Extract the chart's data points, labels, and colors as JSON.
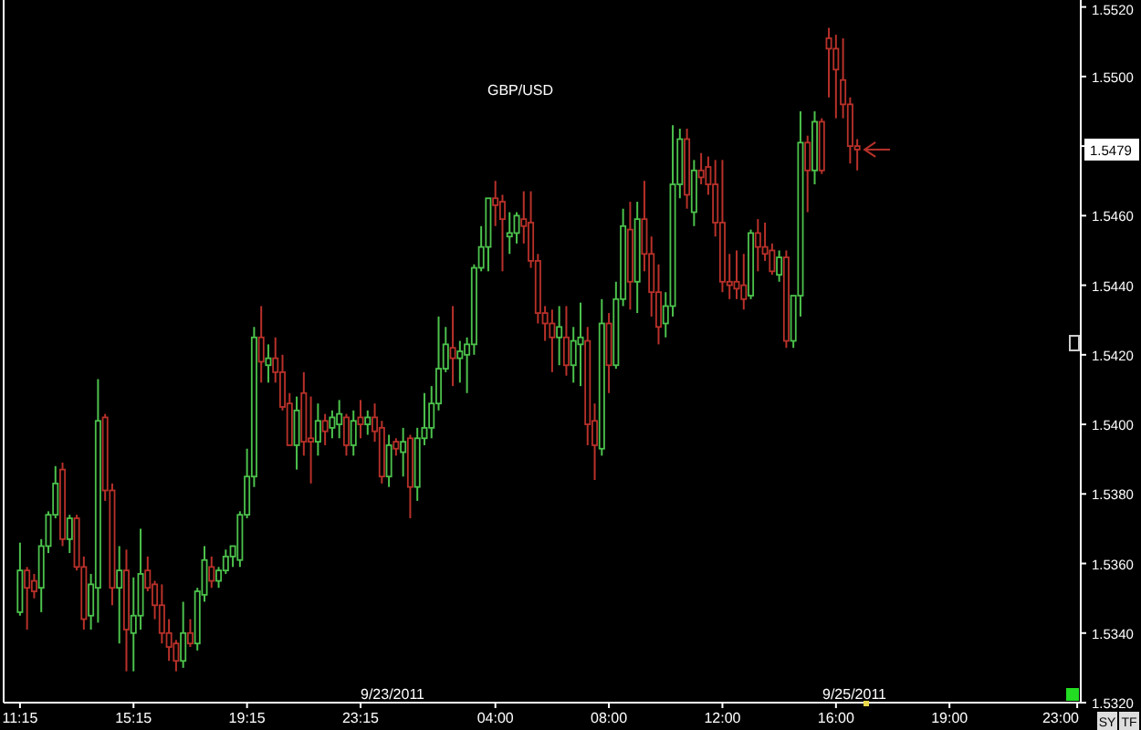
{
  "chart_data": {
    "type": "candlestick",
    "title": "GBP/USD",
    "categories": [
      "11:15",
      null,
      null,
      null,
      null,
      null,
      null,
      null,
      null,
      null,
      null,
      null,
      null,
      null,
      null,
      null,
      "15:15",
      null,
      null,
      null,
      null,
      null,
      null,
      null,
      null,
      null,
      null,
      null,
      null,
      null,
      null,
      null,
      "19:15",
      null,
      null,
      null,
      null,
      null,
      null,
      null,
      null,
      null,
      null,
      null,
      null,
      null,
      null,
      null,
      "23:15",
      null,
      null,
      null,
      null,
      null,
      null,
      null,
      null,
      null,
      null,
      null,
      null,
      null,
      null,
      null,
      null,
      null,
      null,
      "04:00",
      null,
      null,
      null,
      null,
      null,
      null,
      null,
      null,
      null,
      null,
      null,
      null,
      null,
      null,
      null,
      "08:00",
      null,
      null,
      null,
      null,
      null,
      null,
      null,
      null,
      null,
      null,
      null,
      null,
      null,
      null,
      null,
      "12:00",
      null,
      null,
      null,
      null,
      null,
      null,
      null,
      null,
      null,
      null,
      null,
      null,
      null,
      null,
      null,
      "16:00",
      null,
      null,
      null,
      null,
      null,
      null,
      null,
      null,
      null,
      null,
      null,
      null,
      null,
      null,
      null,
      "19:00",
      null,
      null,
      null,
      null,
      null,
      null,
      null,
      null,
      null,
      null,
      null,
      null,
      null,
      null,
      null,
      null,
      null,
      "23:00"
    ],
    "ohlc": [
      [
        1.5346,
        1.5366,
        1.5345,
        1.5358
      ],
      [
        1.5358,
        1.5359,
        1.5341,
        1.5353
      ],
      [
        1.5355,
        1.5357,
        1.535,
        1.5352
      ],
      [
        1.5353,
        1.5367,
        1.5346,
        1.5365
      ],
      [
        1.5365,
        1.5375,
        1.5363,
        1.5374
      ],
      [
        1.5374,
        1.5388,
        1.5373,
        1.5383
      ],
      [
        1.5387,
        1.5389,
        1.5365,
        1.5367
      ],
      [
        1.5367,
        1.5374,
        1.5363,
        1.5373
      ],
      [
        1.5373,
        1.5374,
        1.5358,
        1.5359
      ],
      [
        1.5359,
        1.5362,
        1.5341,
        1.5344
      ],
      [
        1.5345,
        1.5357,
        1.5341,
        1.5354
      ],
      [
        1.5353,
        1.5413,
        1.5343,
        1.5401
      ],
      [
        1.5402,
        1.5403,
        1.5378,
        1.5381
      ],
      [
        1.5381,
        1.5383,
        1.5348,
        1.5353
      ],
      [
        1.5353,
        1.5365,
        1.5337,
        1.5358
      ],
      [
        1.5358,
        1.5364,
        1.5329,
        1.5341
      ],
      [
        1.534,
        1.5356,
        1.5329,
        1.5345
      ],
      [
        1.5345,
        1.537,
        1.5341,
        1.5357
      ],
      [
        1.5358,
        1.5362,
        1.5352,
        1.5353
      ],
      [
        1.5354,
        1.5355,
        1.5344,
        1.5348
      ],
      [
        1.5348,
        1.5354,
        1.5337,
        1.534
      ],
      [
        1.534,
        1.5344,
        1.5332,
        1.5336
      ],
      [
        1.5337,
        1.5338,
        1.5329,
        1.5332
      ],
      [
        1.5332,
        1.5349,
        1.533,
        1.534
      ],
      [
        1.534,
        1.5344,
        1.5336,
        1.5337
      ],
      [
        1.5337,
        1.5353,
        1.5335,
        1.5352
      ],
      [
        1.5351,
        1.5365,
        1.5349,
        1.5361
      ],
      [
        1.5359,
        1.5362,
        1.5353,
        1.5355
      ],
      [
        1.5355,
        1.5359,
        1.5353,
        1.5358
      ],
      [
        1.5358,
        1.5364,
        1.5357,
        1.5362
      ],
      [
        1.5362,
        1.5365,
        1.5359,
        1.5365
      ],
      [
        1.5361,
        1.5375,
        1.5359,
        1.5374
      ],
      [
        1.5374,
        1.5393,
        1.5373,
        1.5385
      ],
      [
        1.5385,
        1.5428,
        1.5382,
        1.5425
      ],
      [
        1.5425,
        1.5434,
        1.5412,
        1.5418
      ],
      [
        1.5417,
        1.5423,
        1.5412,
        1.5419
      ],
      [
        1.5419,
        1.5425,
        1.5412,
        1.5415
      ],
      [
        1.5415,
        1.542,
        1.5404,
        1.5405
      ],
      [
        1.5406,
        1.5409,
        1.5394,
        1.5394
      ],
      [
        1.5394,
        1.5408,
        1.5387,
        1.5404
      ],
      [
        1.5409,
        1.5415,
        1.5391,
        1.5395
      ],
      [
        1.5396,
        1.5408,
        1.5383,
        1.5395
      ],
      [
        1.5395,
        1.5406,
        1.5391,
        1.5401
      ],
      [
        1.5401,
        1.5403,
        1.5394,
        1.5398
      ],
      [
        1.5399,
        1.5404,
        1.5396,
        1.5402
      ],
      [
        1.54,
        1.5407,
        1.5396,
        1.5403
      ],
      [
        1.5402,
        1.5403,
        1.5391,
        1.5394
      ],
      [
        1.5394,
        1.5404,
        1.5391,
        1.5401
      ],
      [
        1.5402,
        1.5407,
        1.5396,
        1.54
      ],
      [
        1.54,
        1.5404,
        1.5397,
        1.5402
      ],
      [
        1.5402,
        1.5406,
        1.5395,
        1.5398
      ],
      [
        1.5399,
        1.5401,
        1.5383,
        1.5385
      ],
      [
        1.5385,
        1.5397,
        1.5382,
        1.5394
      ],
      [
        1.5395,
        1.5396,
        1.5391,
        1.5393
      ],
      [
        1.5392,
        1.5399,
        1.5385,
        1.5395
      ],
      [
        1.5396,
        1.5397,
        1.5373,
        1.5382
      ],
      [
        1.5382,
        1.5399,
        1.5378,
        1.5396
      ],
      [
        1.5396,
        1.5409,
        1.5394,
        1.5399
      ],
      [
        1.5399,
        1.5411,
        1.5396,
        1.5406
      ],
      [
        1.5406,
        1.5431,
        1.5404,
        1.5416
      ],
      [
        1.5416,
        1.5428,
        1.5415,
        1.5423
      ],
      [
        1.5422,
        1.5434,
        1.5411,
        1.5419
      ],
      [
        1.5419,
        1.5424,
        1.5412,
        1.5421
      ],
      [
        1.542,
        1.5425,
        1.5409,
        1.5423
      ],
      [
        1.5423,
        1.5446,
        1.542,
        1.5445
      ],
      [
        1.5445,
        1.5457,
        1.5444,
        1.5451
      ],
      [
        1.5451,
        1.5465,
        1.5444,
        1.5465
      ],
      [
        1.5465,
        1.547,
        1.5457,
        1.5463
      ],
      [
        1.5464,
        1.5466,
        1.5444,
        1.5459
      ],
      [
        1.5454,
        1.5461,
        1.5449,
        1.5455
      ],
      [
        1.5455,
        1.5461,
        1.5452,
        1.546
      ],
      [
        1.5459,
        1.5467,
        1.5452,
        1.5457
      ],
      [
        1.5458,
        1.5467,
        1.5445,
        1.5447
      ],
      [
        1.5447,
        1.5449,
        1.5429,
        1.5432
      ],
      [
        1.5432,
        1.5434,
        1.5424,
        1.5429
      ],
      [
        1.5429,
        1.5433,
        1.5415,
        1.5425
      ],
      [
        1.5425,
        1.5434,
        1.5417,
        1.5428
      ],
      [
        1.5425,
        1.5434,
        1.5414,
        1.5417
      ],
      [
        1.5417,
        1.5428,
        1.5412,
        1.5424
      ],
      [
        1.5423,
        1.5435,
        1.5411,
        1.5425
      ],
      [
        1.5424,
        1.5428,
        1.5394,
        1.54
      ],
      [
        1.5401,
        1.5406,
        1.5384,
        1.5394
      ],
      [
        1.5393,
        1.5436,
        1.5391,
        1.5429
      ],
      [
        1.5429,
        1.5432,
        1.5409,
        1.5417
      ],
      [
        1.5417,
        1.5441,
        1.5416,
        1.5436
      ],
      [
        1.5436,
        1.5462,
        1.5434,
        1.5457
      ],
      [
        1.5456,
        1.5464,
        1.5433,
        1.5441
      ],
      [
        1.5441,
        1.5464,
        1.5432,
        1.5459
      ],
      [
        1.5459,
        1.547,
        1.5444,
        1.5449
      ],
      [
        1.5449,
        1.5454,
        1.5431,
        1.5438
      ],
      [
        1.5438,
        1.5446,
        1.5423,
        1.5428
      ],
      [
        1.5429,
        1.5438,
        1.5425,
        1.5434
      ],
      [
        1.5434,
        1.5486,
        1.5431,
        1.5469
      ],
      [
        1.5469,
        1.5485,
        1.5465,
        1.5482
      ],
      [
        1.5482,
        1.5485,
        1.5462,
        1.5466
      ],
      [
        1.5461,
        1.5476,
        1.5457,
        1.5473
      ],
      [
        1.5473,
        1.5478,
        1.5469,
        1.5471
      ],
      [
        1.5474,
        1.5477,
        1.5466,
        1.5469
      ],
      [
        1.5469,
        1.5476,
        1.5454,
        1.5458
      ],
      [
        1.5458,
        1.5476,
        1.5438,
        1.5441
      ],
      [
        1.5441,
        1.5449,
        1.5436,
        1.544
      ],
      [
        1.5441,
        1.545,
        1.5436,
        1.5439
      ],
      [
        1.544,
        1.5449,
        1.5433,
        1.5436
      ],
      [
        1.5437,
        1.5456,
        1.5436,
        1.5455
      ],
      [
        1.5455,
        1.5459,
        1.5444,
        1.5451
      ],
      [
        1.5451,
        1.5458,
        1.5447,
        1.5449
      ],
      [
        1.545,
        1.5452,
        1.5443,
        1.5444
      ],
      [
        1.5443,
        1.545,
        1.5441,
        1.5448
      ],
      [
        1.5448,
        1.545,
        1.5422,
        1.5424
      ],
      [
        1.5424,
        1.5437,
        1.5422,
        1.5437
      ],
      [
        1.5437,
        1.549,
        1.5431,
        1.5481
      ],
      [
        1.5481,
        1.5483,
        1.5461,
        1.5473
      ],
      [
        1.5473,
        1.549,
        1.5469,
        1.5487
      ],
      [
        1.5487,
        1.5488,
        1.5472,
        1.5473
      ],
      [
        1.5511,
        1.5514,
        1.5494,
        1.5508
      ],
      [
        1.5508,
        1.5512,
        1.5488,
        1.5502
      ],
      [
        1.5499,
        1.5511,
        1.5488,
        1.5492
      ],
      [
        1.5492,
        1.5494,
        1.5475,
        1.548
      ],
      [
        1.548,
        1.5482,
        1.5473,
        1.5479
      ],
      null,
      null,
      null,
      null,
      null,
      null,
      null,
      null,
      null,
      null,
      null,
      null,
      null,
      null,
      null,
      null,
      null,
      null,
      null,
      null,
      null,
      null,
      null,
      null,
      null,
      null,
      null,
      null,
      null,
      null,
      null
    ],
    "colors": [
      "#4cc24c",
      "#b8312a",
      "#b8312a",
      "#4cc24c",
      "#4cc24c",
      "#4cc24c",
      "#b8312a",
      "#4cc24c",
      "#b8312a",
      "#b8312a",
      "#4cc24c",
      "#4cc24c",
      "#b8312a",
      "#b8312a",
      "#4cc24c",
      "#b8312a",
      "#4cc24c",
      "#4cc24c",
      "#b8312a",
      "#b8312a",
      "#b8312a",
      "#b8312a",
      "#b8312a",
      "#4cc24c",
      "#b8312a",
      "#4cc24c",
      "#4cc24c",
      "#b8312a",
      "#4cc24c",
      "#4cc24c",
      "#4cc24c",
      "#4cc24c",
      "#4cc24c",
      "#4cc24c",
      "#b8312a",
      "#4cc24c",
      "#b8312a",
      "#b8312a",
      "#b8312a",
      "#4cc24c",
      "#b8312a",
      "#b8312a",
      "#4cc24c",
      "#b8312a",
      "#4cc24c",
      "#4cc24c",
      "#b8312a",
      "#4cc24c",
      "#b8312a",
      "#4cc24c",
      "#b8312a",
      "#b8312a",
      "#4cc24c",
      "#b8312a",
      "#4cc24c",
      "#b8312a",
      "#4cc24c",
      "#4cc24c",
      "#4cc24c",
      "#4cc24c",
      "#4cc24c",
      "#b8312a",
      "#4cc24c",
      "#4cc24c",
      "#4cc24c",
      "#4cc24c",
      "#4cc24c",
      "#b8312a",
      "#b8312a",
      "#4cc24c",
      "#4cc24c",
      "#b8312a",
      "#b8312a",
      "#b8312a",
      "#b8312a",
      "#b8312a",
      "#4cc24c",
      "#b8312a",
      "#4cc24c",
      "#4cc24c",
      "#b8312a",
      "#b8312a",
      "#4cc24c",
      "#b8312a",
      "#4cc24c",
      "#4cc24c",
      "#b8312a",
      "#4cc24c",
      "#b8312a",
      "#b8312a",
      "#b8312a",
      "#4cc24c",
      "#4cc24c",
      "#4cc24c",
      "#b8312a",
      "#4cc24c",
      "#b8312a",
      "#b8312a",
      "#b8312a",
      "#b8312a",
      "#b8312a",
      "#b8312a",
      "#b8312a",
      "#4cc24c",
      "#b8312a",
      "#b8312a",
      "#b8312a",
      "#4cc24c",
      "#b8312a",
      "#4cc24c",
      "#4cc24c",
      "#b8312a",
      "#4cc24c",
      "#b8312a",
      "#b8312a",
      "#b8312a",
      "#b8312a",
      "#b8312a",
      "#b8312a",
      null,
      null,
      null,
      null,
      null,
      null,
      null,
      null,
      null,
      null,
      null,
      null,
      null,
      null,
      null,
      null,
      null,
      null,
      null,
      null,
      null,
      null,
      null,
      null,
      null,
      null,
      null,
      null,
      null,
      null,
      null
    ],
    "ylim": [
      1.532,
      1.5522
    ],
    "yticks": [
      {
        "value": 1.532,
        "label": "1.5320"
      },
      {
        "value": 1.534,
        "label": "1.5340"
      },
      {
        "value": 1.536,
        "label": "1.5360"
      },
      {
        "value": 1.538,
        "label": "1.5380"
      },
      {
        "value": 1.54,
        "label": "1.5400"
      },
      {
        "value": 1.542,
        "label": "1.5420"
      },
      {
        "value": 1.544,
        "label": "1.5440"
      },
      {
        "value": 1.546,
        "label": "1.5460"
      },
      {
        "value": 1.548,
        "label": null
      },
      {
        "value": 1.55,
        "label": "1.5500"
      },
      {
        "value": 1.552,
        "label": "1.5520"
      }
    ],
    "annotations": [
      "9/23/2011",
      "9/25/2011",
      "1.5479",
      "SY",
      "TF"
    ]
  }
}
